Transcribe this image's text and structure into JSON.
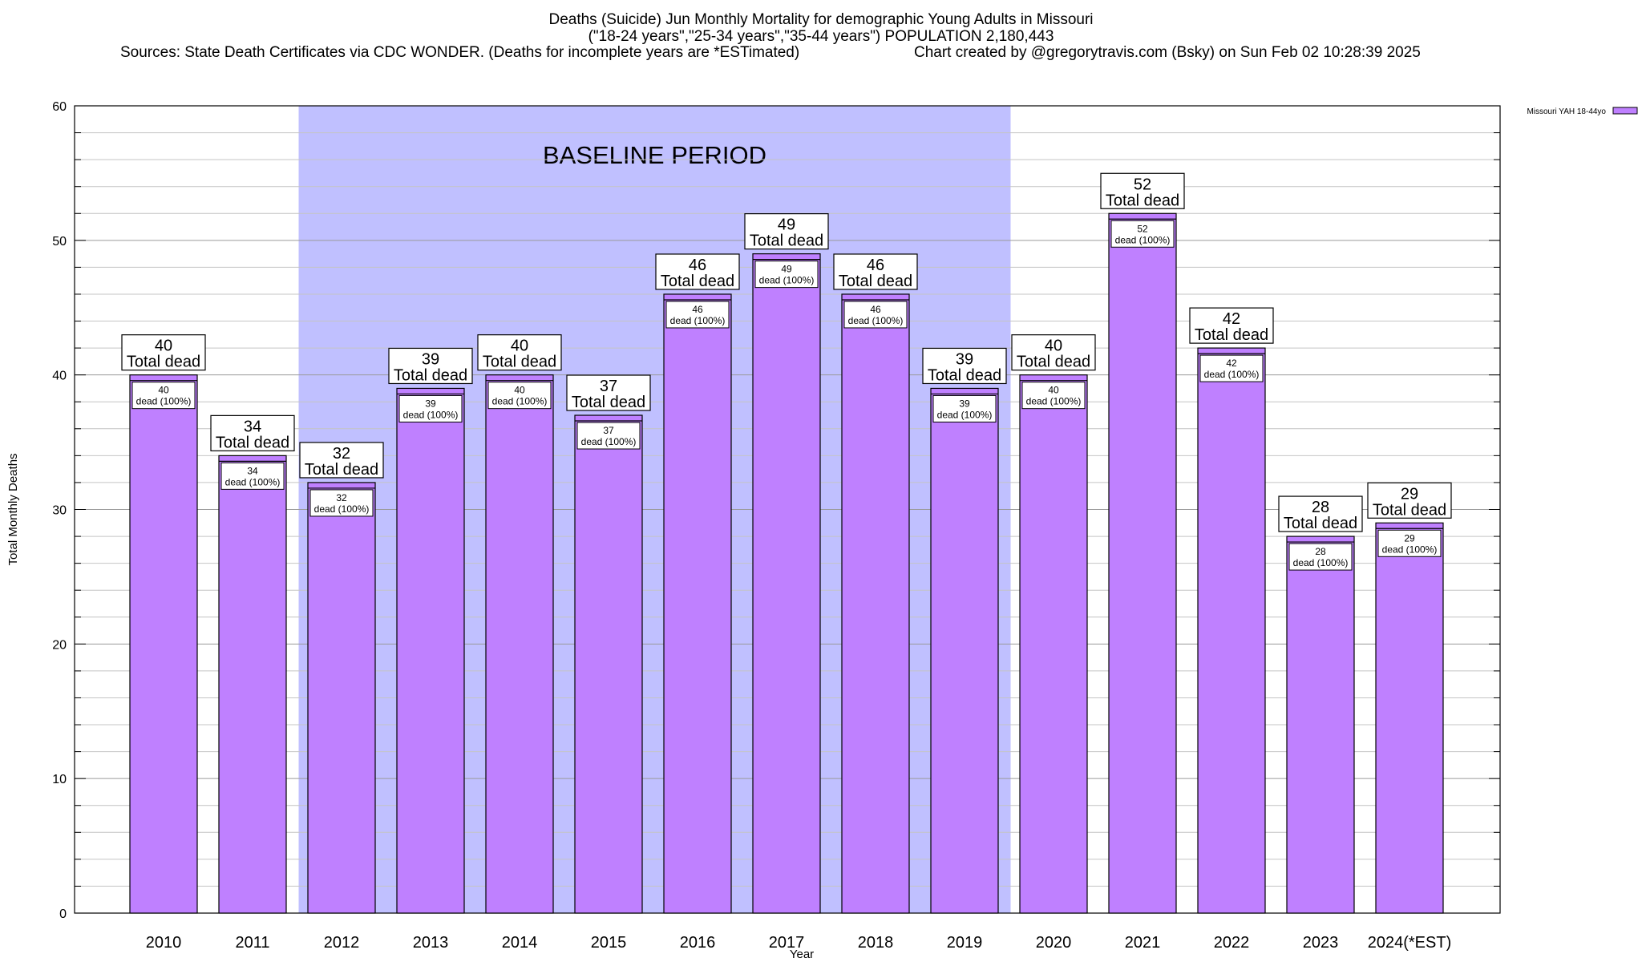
{
  "header": {
    "title_line1": "Deaths (Suicide) Jun Monthly Mortality for demographic Young Adults in Missouri",
    "title_line2": "(\"18-24 years\",\"25-34 years\",\"35-44 years\") POPULATION 2,180,443",
    "sources": "Sources: State Death Certificates via CDC WONDER. (Deaths for incomplete years are *ESTimated)",
    "credit": "Chart created by @gregorytravis.com (Bsky) on Sun Feb 02 10:28:39 2025"
  },
  "chart_data": {
    "type": "bar",
    "xlabel": "Year",
    "ylabel": "Total Monthly Deaths",
    "ylim": [
      0,
      60
    ],
    "yticks": [
      0,
      10,
      20,
      30,
      40,
      50,
      60
    ],
    "minor_grid_step": 2,
    "categories": [
      "2010",
      "2011",
      "2012",
      "2013",
      "2014",
      "2015",
      "2016",
      "2017",
      "2018",
      "2019",
      "2020",
      "2021",
      "2022",
      "2023",
      "2024(*EST)"
    ],
    "series": [
      {
        "name": "Missouri YAH 18-44yo",
        "color": "#bf80ff",
        "values": [
          40,
          34,
          32,
          39,
          40,
          37,
          46,
          49,
          46,
          39,
          40,
          52,
          42,
          28,
          29
        ]
      }
    ],
    "total_label_suffix": "Total dead",
    "inner_label_suffix": "dead (100%)",
    "baseline": {
      "label": "BASELINE PERIOD",
      "from_category": "2012",
      "to_category": "2019",
      "color": "#c0c0ff"
    },
    "legend": {
      "label": "Missouri YAH 18-44yo",
      "position": "top-right-outside"
    }
  }
}
